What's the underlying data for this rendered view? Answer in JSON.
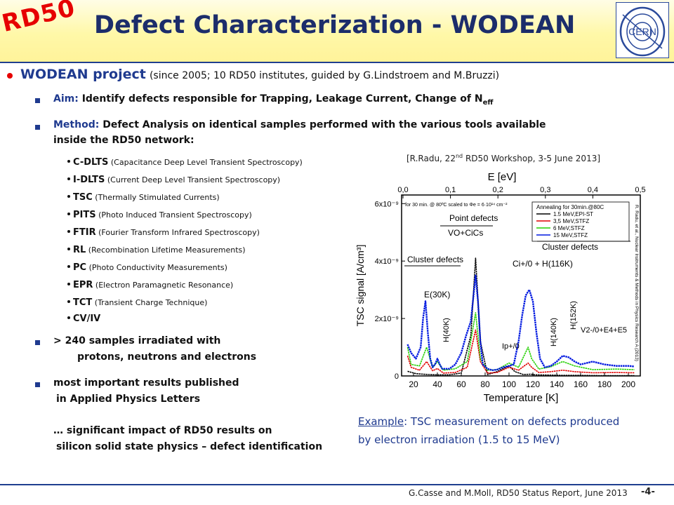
{
  "slide": {
    "logo_text": "RD50",
    "title": "Defect Characterization - WODEAN",
    "cern_logo_text": "CERN",
    "bullet": {
      "head": "WODEAN project",
      "head_rest": "(since 2005; 10 RD50 institutes, guided by G.Lindstroem and M.Bruzzi)"
    },
    "aim": {
      "label": "Aim:",
      "text": "Identify defects responsible for Trapping,  Leakage Current, Change of N",
      "subscript": "eff"
    },
    "method": {
      "label": "Method:",
      "line1": "Defect Analysis on identical samples performed with the various tools available",
      "line2": "inside the RD50 network:"
    },
    "tools": [
      {
        "abbr": "C-DLTS",
        "desc": "(Capacitance Deep Level Transient Spectroscopy)"
      },
      {
        "abbr": "I-DLTS",
        "desc": "(Current Deep Level Transient Spectroscopy)"
      },
      {
        "abbr": "TSC",
        "desc": "(Thermally Stimulated Currents)"
      },
      {
        "abbr": "PITS",
        "desc": "(Photo Induced Transient Spectroscopy)"
      },
      {
        "abbr": "FTIR",
        "desc": "(Fourier Transform Infrared Spectroscopy)"
      },
      {
        "abbr": "RL",
        "desc": "(Recombination Lifetime Measurements)"
      },
      {
        "abbr": "PC",
        "desc": "(Photo Conductivity Measurements)"
      },
      {
        "abbr": "EPR",
        "desc": "(Electron Paramagnetic Resonance)"
      },
      {
        "abbr": "TCT",
        "desc": "(Transient Charge Technique)"
      },
      {
        "abbr": "CV/IV",
        "desc": ""
      }
    ],
    "samples": {
      "line1": "> 240 samples irradiated with",
      "line2": "protons,  neutrons and electrons"
    },
    "results": {
      "line1": "most  important results  published",
      "line2": "in Applied Physics Letters"
    },
    "impact": {
      "line1": "… significant impact of RD50 results on",
      "line2": "silicon solid state physics – defect identification"
    },
    "reference": {
      "pre": "[R.Radu, 22",
      "sup": "nd",
      "post": " RD50 Workshop,  3-5 June 2013]"
    },
    "example": {
      "label": "Example",
      "line1": ": TSC measurement on defects produced",
      "line2": "by electron irradiation (1.5 to 15 MeV)"
    },
    "footer": {
      "text": "G.Casse and M.Moll, RD50 Status Report, June 2013",
      "page": "-4-"
    }
  },
  "chart_data": {
    "type": "line",
    "xlabel": "Temperature [K]",
    "ylabel": "TSC signal [A/cm³]",
    "top_axis_label": "E [eV]",
    "xlim": [
      10,
      210
    ],
    "ylim": [
      0,
      6.3e-09
    ],
    "x_ticks": [
      "20",
      "40",
      "60",
      "80",
      "100",
      "120",
      "140",
      "160",
      "180",
      "200"
    ],
    "y_ticks": [
      "0",
      "2x10⁻⁹",
      "4x10⁻⁹",
      "6x10⁻⁹"
    ],
    "top_ticks": [
      "0,0",
      "0,1",
      "0,2",
      "0,3",
      "0,4",
      "0,5"
    ],
    "legend_title": "Annealing for 30min.@80C",
    "condition_text": "for 30 min. @ 80ºC scaled to Φe = 6·10¹⁴ cm⁻²",
    "side_citation": "R. Radu, et al., Nuclear Instruments & Methods in Physics Research A (2013)",
    "annotations": [
      "Point defects",
      "VO+CiCs",
      "Cluster defects",
      "E(30K)",
      "H(40K)",
      "Ip+/0",
      "Ci+/0 + H(116K)",
      "Cluster defects",
      "H(140K)",
      "H(152K)",
      "V2-/0+E4+E5"
    ],
    "series": [
      {
        "name": "1.5 MeV,EPI-ST",
        "color": "#000000",
        "x": [
          15,
          22,
          28,
          33,
          40,
          50,
          60,
          68,
          72,
          76,
          82,
          90,
          100,
          105,
          112,
          118,
          122,
          135,
          145,
          160,
          180,
          205
        ],
        "y": [
          1.6e-10,
          8e-11,
          6e-11,
          5e-11,
          4e-11,
          4e-11,
          1e-10,
          1.4e-09,
          4.1e-09,
          1.2e-09,
          5e-11,
          1.5e-10,
          3.5e-10,
          1.5e-10,
          5e-11,
          6e-11,
          4e-11,
          3e-11,
          2e-11,
          2e-11,
          1e-11,
          1e-11
        ]
      },
      {
        "name": "3,5 MeV,STFZ",
        "color": "#e00000",
        "x": [
          15,
          18,
          25,
          31,
          36,
          40,
          45,
          55,
          65,
          72,
          76,
          82,
          90,
          100,
          108,
          116,
          119,
          125,
          135,
          145,
          155,
          170,
          190,
          205
        ],
        "y": [
          7e-10,
          3e-10,
          2e-10,
          5e-10,
          1.8e-10,
          2.6e-10,
          1e-10,
          1.2e-10,
          3e-10,
          1.6e-09,
          5e-10,
          1e-10,
          1.2e-10,
          3e-10,
          2e-10,
          4.5e-10,
          3e-10,
          1.2e-10,
          1.5e-10,
          2e-10,
          1.5e-10,
          1.1e-10,
          1.2e-10,
          1.1e-10
        ]
      },
      {
        "name": "6 MeV,STFZ",
        "color": "#22d000",
        "x": [
          15,
          18,
          25,
          31,
          36,
          40,
          45,
          55,
          65,
          72,
          76,
          82,
          90,
          100,
          108,
          116,
          119,
          125,
          135,
          145,
          155,
          170,
          190,
          205
        ],
        "y": [
          1e-09,
          4e-10,
          3.5e-10,
          1e-09,
          3e-10,
          5e-10,
          2e-10,
          2.5e-10,
          5e-10,
          2.2e-09,
          6e-10,
          2e-10,
          2.2e-10,
          4.5e-10,
          3e-10,
          1e-09,
          6e-10,
          2.4e-10,
          3.2e-10,
          5e-10,
          3.5e-10,
          2.2e-10,
          2.4e-10,
          2.2e-10
        ]
      },
      {
        "name": "15 MeV,STFZ",
        "color": "#0018e0",
        "x": [
          15,
          18,
          22,
          26,
          28,
          30,
          32,
          34,
          36,
          38,
          40,
          42,
          44,
          50,
          55,
          60,
          64,
          68,
          70,
          72,
          74,
          76,
          78,
          82,
          86,
          90,
          95,
          100,
          104,
          108,
          111,
          114,
          117,
          120,
          123,
          126,
          130,
          135,
          140,
          145,
          150,
          155,
          160,
          165,
          170,
          180,
          190,
          200,
          205
        ],
        "y": [
          1.1e-09,
          8e-10,
          6e-10,
          1e-09,
          2e-09,
          2.6e-09,
          1.5e-09,
          6e-10,
          3e-10,
          4e-10,
          6e-10,
          4e-10,
          2.5e-10,
          2.5e-10,
          4e-10,
          8e-10,
          1.4e-09,
          1.9e-09,
          2.7e-09,
          3.5e-09,
          2.6e-09,
          1.2e-09,
          4e-10,
          2.5e-10,
          2e-10,
          2.2e-10,
          3e-10,
          3.5e-10,
          4e-10,
          1.2e-09,
          2.1e-09,
          2.8e-09,
          3e-09,
          2.6e-09,
          1.5e-09,
          6e-10,
          3e-10,
          3.5e-10,
          5e-10,
          7e-10,
          6.5e-10,
          5e-10,
          4e-10,
          4.5e-10,
          5e-10,
          4e-10,
          3.5e-10,
          3.5e-10,
          3.3e-10
        ]
      }
    ]
  }
}
